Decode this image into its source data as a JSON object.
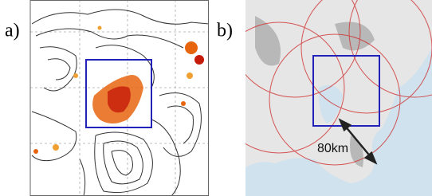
{
  "panels": [
    {
      "label": "a)"
    },
    {
      "label": "b)",
      "annotation": "80km"
    }
  ]
}
